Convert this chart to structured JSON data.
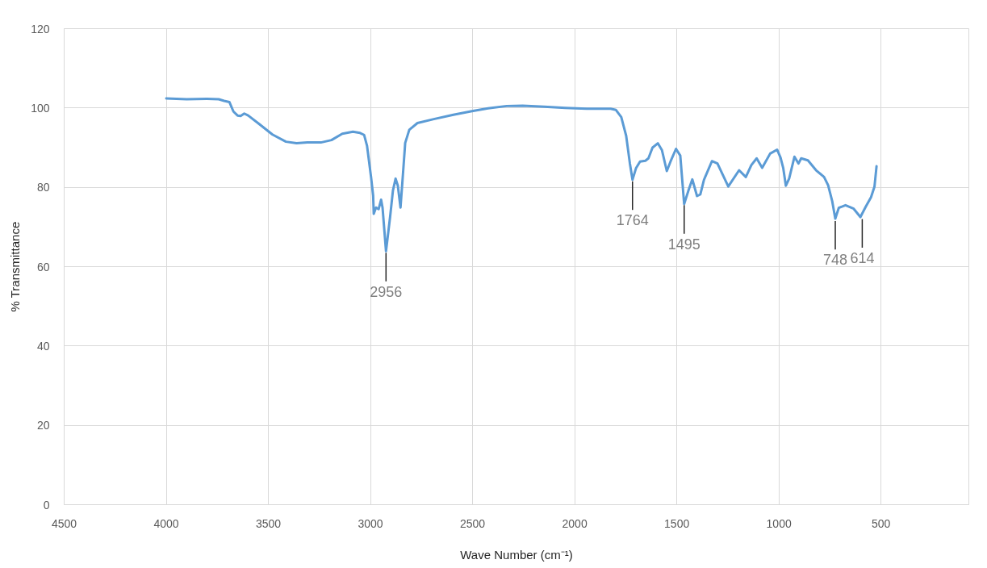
{
  "chart_data": {
    "type": "line",
    "xlabel": "Wave Number (cm⁻¹)",
    "ylabel": "% Transmittance",
    "color": "#5b9bd5",
    "line_style": "solid",
    "grid": true,
    "xlim": [
      4500,
      70
    ],
    "ylim": [
      0,
      120
    ],
    "xticks": [
      4500,
      4000,
      3500,
      3000,
      2500,
      2000,
      1500,
      1000,
      500
    ],
    "yticks": [
      0,
      20,
      40,
      60,
      80,
      100,
      120
    ],
    "x": [
      4000,
      3900,
      3800,
      3743,
      3717,
      3691,
      3671,
      3651,
      3636,
      3618,
      3599,
      3546,
      3480,
      3414,
      3362,
      3309,
      3243,
      3191,
      3138,
      3086,
      3051,
      3031,
      3017,
      2997,
      2987,
      2984,
      2973,
      2960,
      2948,
      2941,
      2924,
      2904,
      2890,
      2877,
      2866,
      2853,
      2844,
      2830,
      2810,
      2770,
      2690,
      2594,
      2503,
      2424,
      2333,
      2255,
      2150,
      2046,
      1941,
      1824,
      1798,
      1772,
      1748,
      1730,
      1717,
      1700,
      1680,
      1654,
      1639,
      1619,
      1593,
      1573,
      1549,
      1530,
      1504,
      1483,
      1464,
      1443,
      1424,
      1401,
      1385,
      1367,
      1328,
      1301,
      1248,
      1195,
      1162,
      1135,
      1109,
      1082,
      1043,
      1009,
      992,
      979,
      966,
      950,
      924,
      904,
      891,
      858,
      818,
      779,
      759,
      739,
      724,
      707,
      674,
      634,
      601,
      575,
      549,
      532,
      522
    ],
    "values": [
      102.4,
      102.2,
      102.3,
      102.2,
      101.8,
      101.5,
      99.1,
      98.1,
      98.0,
      98.6,
      98.1,
      96.0,
      93.3,
      91.5,
      91.1,
      91.3,
      91.3,
      91.9,
      93.5,
      94.0,
      93.7,
      93.2,
      90.5,
      82.5,
      77.9,
      73.3,
      74.9,
      74.5,
      76.9,
      74.9,
      63.9,
      72.5,
      79.2,
      82.2,
      80.4,
      74.9,
      81.2,
      91.2,
      94.5,
      96.2,
      97.2,
      98.3,
      99.2,
      99.9,
      100.5,
      100.6,
      100.3,
      100.0,
      99.8,
      99.8,
      99.5,
      97.7,
      93.0,
      86.1,
      81.9,
      84.8,
      86.5,
      86.7,
      87.3,
      90.0,
      91.1,
      89.4,
      84.1,
      86.6,
      89.7,
      88.0,
      75.8,
      79.2,
      82.0,
      77.8,
      78.2,
      81.9,
      86.6,
      86.0,
      80.2,
      84.3,
      82.6,
      85.6,
      87.3,
      84.9,
      88.5,
      89.5,
      87.5,
      84.9,
      80.4,
      82.2,
      87.7,
      86.0,
      87.3,
      86.8,
      84.3,
      82.6,
      80.5,
      76.5,
      72.1,
      74.8,
      75.5,
      74.6,
      72.5,
      75.1,
      77.5,
      80.2,
      85.3
    ],
    "annotations": [
      {
        "text": "2956",
        "x": 2924,
        "y": 63.5
      },
      {
        "text": "1764",
        "x": 1717,
        "y": 81.5
      },
      {
        "text": "1495",
        "x": 1464,
        "y": 75.5
      },
      {
        "text": "748",
        "x": 724,
        "y": 71.5
      },
      {
        "text": "614",
        "x": 592,
        "y": 72
      }
    ]
  }
}
